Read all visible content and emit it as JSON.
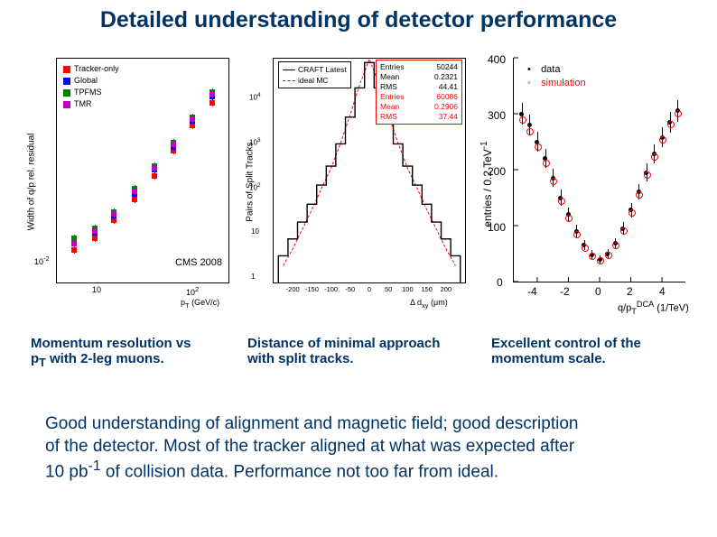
{
  "title": {
    "text": "Detailed understanding of detector performance",
    "color": "#003366",
    "fontsize": 25
  },
  "captions": {
    "c1_l1": "Momentum resolution vs",
    "c1_l2a": "p",
    "c1_l2b": "T",
    "c1_l2c": " with 2-leg muons.",
    "c2_l1": "Distance of minimal approach",
    "c2_l2": "with split tracks.",
    "c3_l1": "Excellent control of the",
    "c3_l2": "momentum scale.",
    "color": "#003366",
    "fontsize": 15
  },
  "body": {
    "l1": "Good understanding of alignment and magnetic field; good description",
    "l2": "of the detector. Most of the tracker aligned at what was expected after",
    "l3a": "10 pb",
    "l3b": "-1",
    "l3c": " of collision data. Performance not too far from ideal.",
    "color": "#003366",
    "fontsize": 19
  },
  "chart1": {
    "type": "scatter",
    "xscale": "log",
    "yscale": "log",
    "xlabel": "p_T (GeV/c)",
    "ylabel": "Width of q/p rel. residual",
    "xticks": [
      "10",
      "10^2"
    ],
    "yticks": [
      "10^-2"
    ],
    "legend_items": [
      "Tracker-only",
      "Global",
      "TPFMS",
      "TMR"
    ],
    "legend_colors": [
      "#ff0000",
      "#0000ff",
      "#008000",
      "#c000c0"
    ],
    "annotation": "CMS 2008",
    "background_color": "#ffffff",
    "axis_color": "#000000",
    "label_fontsize": 9,
    "x_values": [
      8,
      14,
      23,
      40,
      68,
      115,
      190,
      320
    ],
    "series": [
      [
        0.01,
        0.012,
        0.016,
        0.022,
        0.032,
        0.047,
        0.07,
        0.1
      ],
      [
        0.011,
        0.013,
        0.017,
        0.024,
        0.035,
        0.05,
        0.075,
        0.11
      ],
      [
        0.012,
        0.014,
        0.018,
        0.026,
        0.037,
        0.054,
        0.08,
        0.118
      ],
      [
        0.011,
        0.0135,
        0.0175,
        0.025,
        0.036,
        0.052,
        0.078,
        0.115
      ]
    ]
  },
  "chart2": {
    "type": "histogram",
    "xlabel": "Δ d_xy (μm)",
    "ylabel": "Pairs of Split Tracks",
    "yscale": "log",
    "xlim": [
      -250,
      250
    ],
    "xticks": [
      "-200",
      "-150",
      "-100",
      "-50",
      "0",
      "50",
      "100",
      "150",
      "200"
    ],
    "yticks": [
      "1",
      "10",
      "10^2",
      "10^3",
      "10^4"
    ],
    "legend_items": [
      "CRAFT Latest",
      "ideal MC"
    ],
    "legend_colors": [
      "#000000",
      "#ff0000"
    ],
    "stats_labels": [
      "Entries",
      "Mean",
      "RMS",
      "Entries",
      "Mean",
      "RMS"
    ],
    "stats_values": [
      "50244",
      "0.2321",
      "44.41",
      "60086",
      "0.2906",
      "37.44"
    ],
    "stats_colors": [
      "#000000",
      "#000000",
      "#000000",
      "#ff0000",
      "#ff0000",
      "#ff0000"
    ],
    "stats_border": "#ff0000",
    "background_color": "#ffffff",
    "label_fontsize": 9,
    "data_bin_centers": [
      -225,
      -200,
      -175,
      -150,
      -125,
      -100,
      -75,
      -50,
      -25,
      0,
      25,
      50,
      75,
      100,
      125,
      150,
      175,
      200,
      225
    ],
    "data_counts": [
      3,
      6,
      12,
      25,
      55,
      120,
      300,
      900,
      3000,
      8500,
      3000,
      900,
      300,
      120,
      55,
      25,
      12,
      6,
      3
    ],
    "mc_counts": [
      2,
      4,
      9,
      20,
      48,
      110,
      310,
      1000,
      3500,
      9800,
      3500,
      1000,
      310,
      110,
      48,
      20,
      9,
      4,
      2
    ]
  },
  "chart3": {
    "type": "scatter",
    "xlabel": "q/p_T^DCA (1/TeV)",
    "ylabel": "entries / 0.2 TeV^-1",
    "xlim": [
      -5.5,
      5.5
    ],
    "ylim": [
      0,
      400
    ],
    "xticks": [
      "-4",
      "-2",
      "0",
      "2",
      "4"
    ],
    "yticks": [
      "0",
      "100",
      "200",
      "300",
      "400"
    ],
    "legend_items": [
      "data",
      "simulation"
    ],
    "legend_colors": [
      "#000000",
      "#ff0000"
    ],
    "legend_markers": [
      "•",
      "○"
    ],
    "background_color": "#ffffff",
    "axis_color": "#000000",
    "label_fontsize": 9,
    "x_values": [
      -5,
      -4.5,
      -4,
      -3.5,
      -3,
      -2.5,
      -2,
      -1.5,
      -1,
      -0.5,
      0,
      0.5,
      1,
      1.5,
      2,
      2.5,
      3,
      3.5,
      4,
      4.5,
      5
    ],
    "data_y": [
      300,
      280,
      250,
      220,
      185,
      150,
      120,
      90,
      65,
      48,
      40,
      50,
      68,
      95,
      128,
      160,
      195,
      228,
      258,
      285,
      305
    ],
    "sim_y": [
      290,
      270,
      242,
      213,
      180,
      145,
      115,
      86,
      62,
      46,
      38,
      48,
      66,
      92,
      125,
      157,
      192,
      225,
      255,
      282,
      302
    ],
    "data_err": [
      20,
      19,
      18,
      17,
      16,
      14,
      13,
      11,
      9,
      8,
      7,
      8,
      9,
      11,
      13,
      14,
      16,
      17,
      18,
      19,
      20
    ],
    "data_marker_color": "#000000",
    "sim_marker_color": "#ff0000"
  }
}
